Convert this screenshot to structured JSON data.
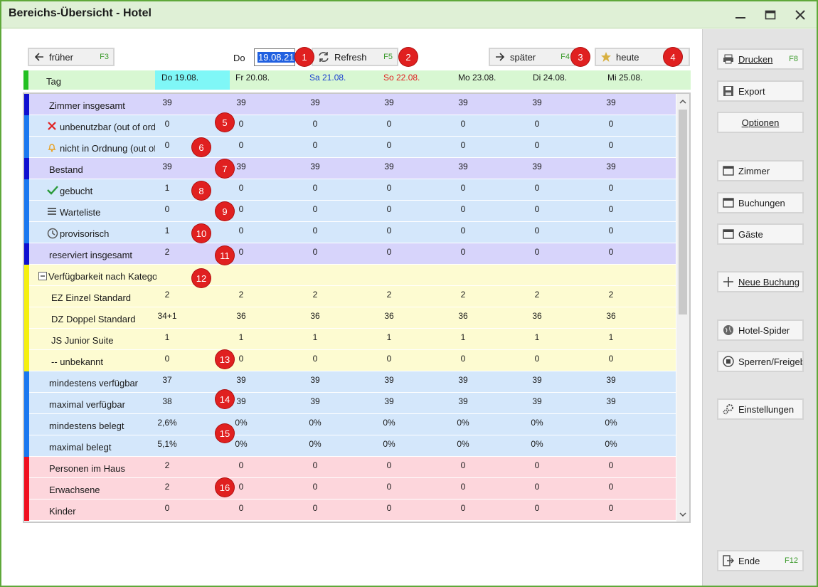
{
  "window": {
    "title": "Bereichs-Übersicht - Hotel"
  },
  "toolbar": {
    "earlier_label": "früher",
    "earlier_key": "F3",
    "day_label": "Do",
    "date_value": "19.08.21",
    "refresh_label": "Refresh",
    "refresh_key": "F5",
    "later_label": "später",
    "later_key": "F4",
    "today_label": "heute"
  },
  "header": {
    "tag_label": "Tag",
    "days": [
      "Do 19.08.",
      "Fr 20.08.",
      "Sa 21.08.",
      "So 22.08.",
      "Mo 23.08.",
      "Di 24.08.",
      "Mi 25.08."
    ],
    "day_colors": [
      "#1a1a1a",
      "#1a1a1a",
      "#1a3fd0",
      "#e02020",
      "#1a1a1a",
      "#1a1a1a",
      "#1a1a1a"
    ],
    "today_bg": "#7ff7f7"
  },
  "rows": [
    {
      "label": "Zimmer insgesamt",
      "values": [
        "39",
        "39",
        "39",
        "39",
        "39",
        "39",
        "39"
      ]
    },
    {
      "label": "unbenutzbar (out of order)",
      "values": [
        "0",
        "0",
        "0",
        "0",
        "0",
        "0",
        "0"
      ]
    },
    {
      "label": "nicht in Ordnung (out of service)",
      "values": [
        "0",
        "0",
        "0",
        "0",
        "0",
        "0",
        "0"
      ]
    },
    {
      "label": "Bestand",
      "values": [
        "39",
        "39",
        "39",
        "39",
        "39",
        "39",
        "39"
      ]
    },
    {
      "label": "gebucht",
      "values": [
        "1",
        "0",
        "0",
        "0",
        "0",
        "0",
        "0"
      ]
    },
    {
      "label": "Warteliste",
      "values": [
        "0",
        "0",
        "0",
        "0",
        "0",
        "0",
        "0"
      ]
    },
    {
      "label": "provisorisch",
      "values": [
        "1",
        "0",
        "0",
        "0",
        "0",
        "0",
        "0"
      ]
    },
    {
      "label": "reserviert insgesamt",
      "values": [
        "2",
        "0",
        "0",
        "0",
        "0",
        "0",
        "0"
      ]
    },
    {
      "label": "Verfügbarkeit nach Kategorie",
      "values": [
        "",
        "",
        "",
        "",
        "",
        "",
        ""
      ]
    },
    {
      "label": "EZ Einzel Standard",
      "values": [
        "2",
        "2",
        "2",
        "2",
        "2",
        "2",
        "2"
      ]
    },
    {
      "label": "DZ Doppel Standard",
      "values": [
        "34+1",
        "36",
        "36",
        "36",
        "36",
        "36",
        "36"
      ]
    },
    {
      "label": "JS Junior Suite",
      "values": [
        "1",
        "1",
        "1",
        "1",
        "1",
        "1",
        "1"
      ]
    },
    {
      "label": "-- unbekannt",
      "values": [
        "0",
        "0",
        "0",
        "0",
        "0",
        "0",
        "0"
      ]
    },
    {
      "label": "mindestens verfügbar",
      "values": [
        "37",
        "39",
        "39",
        "39",
        "39",
        "39",
        "39"
      ]
    },
    {
      "label": "maximal verfügbar",
      "values": [
        "38",
        "39",
        "39",
        "39",
        "39",
        "39",
        "39"
      ]
    },
    {
      "label": "mindestens belegt",
      "values": [
        "2,6%",
        "0%",
        "0%",
        "0%",
        "0%",
        "0%",
        "0%"
      ]
    },
    {
      "label": "maximal belegt",
      "values": [
        "5,1%",
        "0%",
        "0%",
        "0%",
        "0%",
        "0%",
        "0%"
      ]
    },
    {
      "label": "Personen im Haus",
      "values": [
        "2",
        "0",
        "0",
        "0",
        "0",
        "0",
        "0"
      ]
    },
    {
      "label": "Erwachsene",
      "values": [
        "2",
        "0",
        "0",
        "0",
        "0",
        "0",
        "0"
      ]
    },
    {
      "label": "Kinder",
      "values": [
        "0",
        "0",
        "0",
        "0",
        "0",
        "0",
        "0"
      ]
    }
  ],
  "badges": [
    "1",
    "2",
    "3",
    "4",
    "5",
    "6",
    "7",
    "8",
    "9",
    "10",
    "11",
    "12",
    "13",
    "14",
    "15",
    "16"
  ],
  "sidebar": {
    "print_label": "Drucken",
    "print_key": "F8",
    "export_label": "Export",
    "options_label": "Optionen",
    "rooms_label": "Zimmer",
    "bookings_label": "Buchungen",
    "guests_label": "Gäste",
    "new_booking_label": "Neue Buchung",
    "spider_label": "Hotel-Spider",
    "lock_label": "Sperren/Freigeben",
    "settings_label": "Einstellungen",
    "end_label": "Ende",
    "end_key": "F12"
  },
  "colors": {
    "purple_row": "#d7d4fb",
    "blue_row": "#d4e7fb",
    "yellow_row": "#fdfbd1",
    "pink_row": "#fdd6dc",
    "purple_bar": "#1010d0",
    "blue_bar": "#1a78f0",
    "yellow_bar": "#f5ef10",
    "red_bar": "#f01020"
  }
}
